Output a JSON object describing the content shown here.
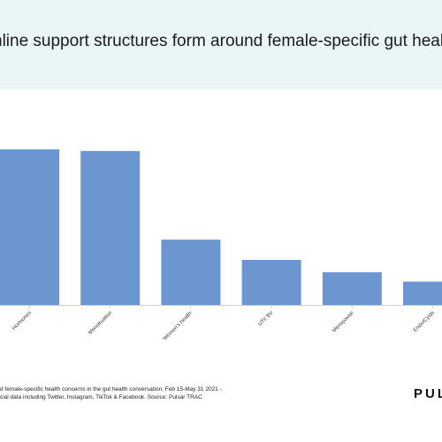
{
  "header": {
    "title": "nline support structures form around female-specific gut healt"
  },
  "chart_data": {
    "type": "bar",
    "categories": [
      "Hormones",
      "Menstruation",
      "'Women's health'",
      "UTI/ BV",
      "Menopause",
      "Endo/Cysts"
    ],
    "values": [
      100,
      99,
      42,
      29,
      21,
      15
    ],
    "ylim": [
      0,
      100
    ],
    "grid": false,
    "bar_color": "#6b96cf",
    "axis_color": "#d0d0d0"
  },
  "footnote": {
    "line1": "d female-specific health concerns in  the gut health conversation, Feb 15-May 31 2021 -",
    "line2": "cial data including Twitter, Instagram, TikTok & Facebook. Source: Pulsar TRAC"
  },
  "brand": {
    "name": "PUL"
  }
}
